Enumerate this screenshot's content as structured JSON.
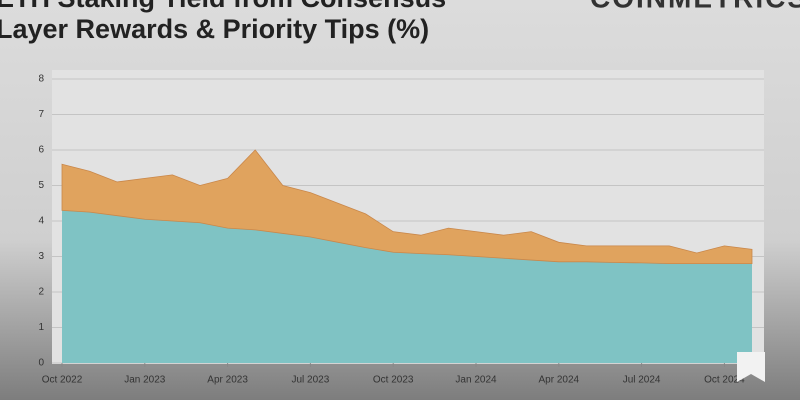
{
  "chart_data": {
    "type": "stacked-area",
    "title": [
      "ETH Staking Yield from Consensus",
      "Layer Rewards & Priority Tips (%)"
    ],
    "source": "COINMETRICS",
    "x": [
      "2022-10",
      "2022-11",
      "2022-12",
      "2023-01",
      "2023-02",
      "2023-03",
      "2023-04",
      "2023-05",
      "2023-06",
      "2023-07",
      "2023-08",
      "2023-09",
      "2023-10",
      "2023-11",
      "2023-12",
      "2024-01",
      "2024-02",
      "2024-03",
      "2024-04",
      "2024-05",
      "2024-06",
      "2024-07",
      "2024-08",
      "2024-09",
      "2024-10",
      "2024-11"
    ],
    "series": [
      {
        "color": "#7fc3c4",
        "values": [
          4.3,
          4.25,
          4.15,
          4.05,
          4.0,
          3.95,
          3.8,
          3.75,
          3.65,
          3.55,
          3.4,
          3.25,
          3.12,
          3.08,
          3.05,
          3.0,
          2.95,
          2.9,
          2.85,
          2.85,
          2.83,
          2.82,
          2.8,
          2.8,
          2.8,
          2.8
        ]
      },
      {
        "color": "#e0a35e",
        "values": [
          1.3,
          1.15,
          0.95,
          1.15,
          1.3,
          1.05,
          1.4,
          2.25,
          1.35,
          1.25,
          1.1,
          0.95,
          0.58,
          0.52,
          0.75,
          0.7,
          0.65,
          0.8,
          0.55,
          0.45,
          0.47,
          0.48,
          0.5,
          0.3,
          0.5,
          0.4
        ]
      }
    ],
    "xlim": [
      "2022-10",
      "2024-11"
    ],
    "xticks": [
      {
        "value": "2022-10",
        "label": "Oct 2022"
      },
      {
        "value": "2023-01",
        "label": "Jan 2023"
      },
      {
        "value": "2023-04",
        "label": "Apr 2023"
      },
      {
        "value": "2023-07",
        "label": "Jul 2023"
      },
      {
        "value": "2023-10",
        "label": "Oct 2023"
      },
      {
        "value": "2024-01",
        "label": "Jan 2024"
      },
      {
        "value": "2024-04",
        "label": "Apr 2024"
      },
      {
        "value": "2024-07",
        "label": "Jul 2024"
      },
      {
        "value": "2024-10",
        "label": "Oct 2024"
      }
    ],
    "ylim": [
      0,
      8
    ],
    "yticks": [
      0,
      1,
      2,
      3,
      4,
      5,
      6,
      7,
      8
    ],
    "grid": true
  }
}
